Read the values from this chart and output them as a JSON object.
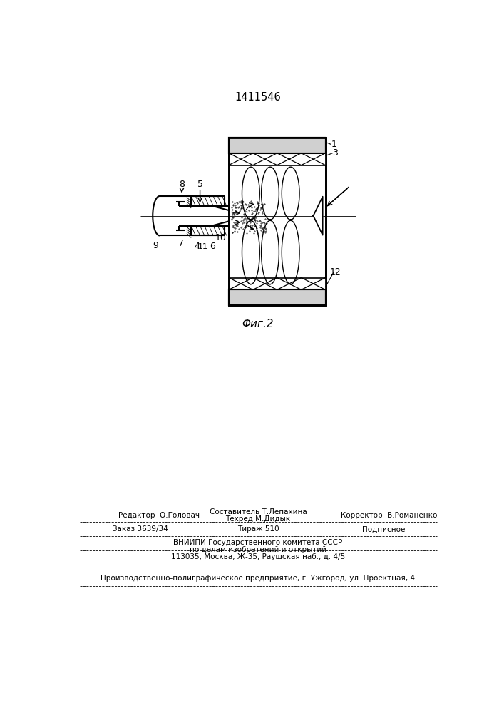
{
  "title": "1411546",
  "fig_label": "Φиг.2",
  "background_color": "#ffffff",
  "line_color": "#000000",
  "footer_line1_left": "Редактор  О.Головач",
  "footer_line1_center_top": "Составитель Т.Лепахина",
  "footer_line1_center_bot": "Техред М.Дидык",
  "footer_line1_right": "Корректор  В.Романенко",
  "footer_line2_left": "Заказ 3639/34",
  "footer_line2_center": "Тираж 510",
  "footer_line2_right": "Подписное",
  "footer_line3": "ВНИИПИ Государственного комитета СССР",
  "footer_line4": "по делам изобретений и открытий",
  "footer_line5": "113035, Москва, Ж-35, Раушская наб., д. 4/5",
  "footer_line6": "Производственно-полиграфическое предприятие, г. Ужгород, ул. Проектная, 4"
}
